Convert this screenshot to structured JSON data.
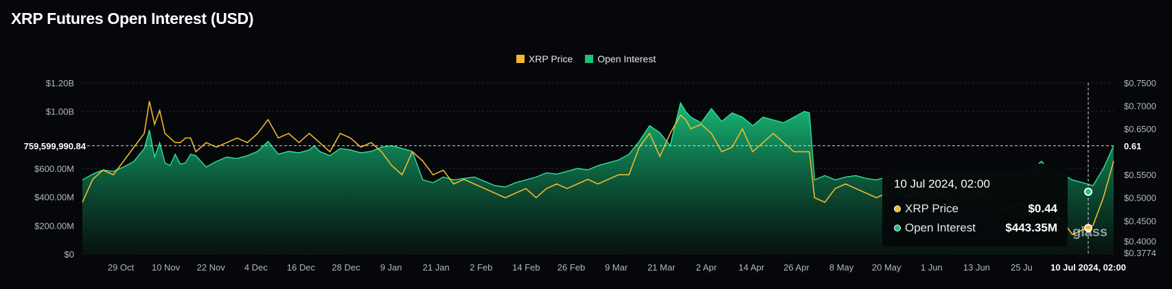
{
  "title": "XRP Futures Open Interest (USD)",
  "watermark": "glass",
  "legend": [
    {
      "name": "XRP Price",
      "color": "#f3ba2f"
    },
    {
      "name": "Open Interest",
      "color": "#19c37d"
    }
  ],
  "crosshair": {
    "y_label": "759,599,990.84",
    "y_value": 759599990.84,
    "right_label": "0.61",
    "x_label": "10 Jul 2024, 02:00"
  },
  "tooltip": {
    "date": "10 Jul 2024, 02:00",
    "rows": [
      {
        "name": "XRP Price",
        "value": "$0.44",
        "color": "#f3ba2f"
      },
      {
        "name": "Open Interest",
        "value": "$443.35M",
        "color": "#19c37d"
      }
    ]
  },
  "chart_data": {
    "type": "area",
    "title": "XRP Futures Open Interest (USD)",
    "x_ticks": [
      "29 Oct",
      "10 Nov",
      "22 Nov",
      "4 Dec",
      "16 Dec",
      "28 Dec",
      "9 Jan",
      "21 Jan",
      "2 Feb",
      "14 Feb",
      "26 Feb",
      "9 Mar",
      "21 Mar",
      "2 Apr",
      "14 Apr",
      "26 Apr",
      "8 May",
      "20 May",
      "1 Jun",
      "13 Jun",
      "25 Ju"
    ],
    "y_left": {
      "ticks": [
        0,
        200000000,
        400000000,
        600000000,
        1000000000,
        1200000000
      ],
      "labels": [
        "$0",
        "$200.00M",
        "$400.00M",
        "$600.00M",
        "$1.00B",
        "$1.20B"
      ],
      "range": [
        0,
        1200000000
      ]
    },
    "y_right": {
      "ticks": [
        0.3774,
        0.4,
        0.45,
        0.5,
        0.55,
        0.6,
        0.65,
        0.7,
        0.75
      ],
      "labels": [
        "$0.3774",
        "$0.4000",
        "$0.4500",
        "$0.5000",
        "$0.5500",
        "",
        "$0.6500",
        "$0.7000",
        "$0.7500"
      ],
      "range": [
        0.3774,
        0.75
      ]
    },
    "x_range": [
      0,
      1
    ],
    "grid": true,
    "legend_position": "top-center",
    "series": [
      {
        "name": "Open Interest",
        "axis": "left",
        "color": "#19c37d",
        "x": [
          0.0,
          0.01,
          0.02,
          0.03,
          0.04,
          0.05,
          0.06,
          0.065,
          0.07,
          0.075,
          0.08,
          0.085,
          0.09,
          0.095,
          0.1,
          0.105,
          0.11,
          0.12,
          0.13,
          0.14,
          0.15,
          0.16,
          0.17,
          0.18,
          0.19,
          0.2,
          0.21,
          0.22,
          0.225,
          0.23,
          0.24,
          0.25,
          0.26,
          0.27,
          0.28,
          0.29,
          0.3,
          0.31,
          0.32,
          0.33,
          0.34,
          0.35,
          0.36,
          0.37,
          0.38,
          0.39,
          0.4,
          0.41,
          0.42,
          0.43,
          0.44,
          0.45,
          0.46,
          0.47,
          0.48,
          0.49,
          0.5,
          0.51,
          0.52,
          0.53,
          0.54,
          0.55,
          0.56,
          0.57,
          0.58,
          0.585,
          0.59,
          0.6,
          0.61,
          0.62,
          0.63,
          0.64,
          0.65,
          0.66,
          0.67,
          0.68,
          0.69,
          0.7,
          0.705,
          0.71,
          0.72,
          0.73,
          0.74,
          0.75,
          0.76,
          0.77,
          0.78,
          0.79,
          0.8,
          0.81,
          0.82,
          0.83,
          0.84,
          0.85,
          0.86,
          0.87,
          0.88,
          0.89,
          0.9,
          0.91,
          0.92,
          0.93,
          0.94,
          0.95,
          0.96,
          0.97,
          0.98,
          0.99,
          1.0
        ],
        "y": [
          520000000,
          560000000,
          590000000,
          580000000,
          610000000,
          650000000,
          740000000,
          870000000,
          680000000,
          780000000,
          640000000,
          620000000,
          700000000,
          630000000,
          640000000,
          700000000,
          690000000,
          610000000,
          650000000,
          680000000,
          670000000,
          690000000,
          720000000,
          790000000,
          700000000,
          720000000,
          710000000,
          730000000,
          760000000,
          720000000,
          690000000,
          740000000,
          730000000,
          710000000,
          720000000,
          750000000,
          760000000,
          740000000,
          720000000,
          520000000,
          500000000,
          540000000,
          520000000,
          530000000,
          540000000,
          510000000,
          480000000,
          470000000,
          500000000,
          520000000,
          540000000,
          570000000,
          560000000,
          580000000,
          600000000,
          590000000,
          620000000,
          640000000,
          660000000,
          700000000,
          790000000,
          900000000,
          850000000,
          760000000,
          1060000000,
          1000000000,
          960000000,
          920000000,
          1020000000,
          930000000,
          990000000,
          960000000,
          900000000,
          960000000,
          940000000,
          920000000,
          960000000,
          1000000000,
          990000000,
          520000000,
          550000000,
          520000000,
          540000000,
          550000000,
          530000000,
          520000000,
          540000000,
          560000000,
          550000000,
          560000000,
          550000000,
          570000000,
          560000000,
          560000000,
          570000000,
          580000000,
          570000000,
          560000000,
          580000000,
          570000000,
          590000000,
          650000000,
          580000000,
          560000000,
          520000000,
          500000000,
          480000000,
          600000000,
          760000000
        ]
      },
      {
        "name": "XRP Price",
        "axis": "right",
        "color": "#f3ba2f",
        "x": [
          0.0,
          0.01,
          0.02,
          0.03,
          0.04,
          0.05,
          0.06,
          0.065,
          0.07,
          0.075,
          0.08,
          0.085,
          0.09,
          0.095,
          0.1,
          0.105,
          0.11,
          0.12,
          0.13,
          0.14,
          0.15,
          0.16,
          0.17,
          0.18,
          0.19,
          0.2,
          0.21,
          0.22,
          0.225,
          0.23,
          0.24,
          0.25,
          0.26,
          0.27,
          0.28,
          0.29,
          0.3,
          0.31,
          0.32,
          0.33,
          0.34,
          0.35,
          0.36,
          0.37,
          0.38,
          0.39,
          0.4,
          0.41,
          0.42,
          0.43,
          0.44,
          0.45,
          0.46,
          0.47,
          0.48,
          0.49,
          0.5,
          0.51,
          0.52,
          0.53,
          0.54,
          0.55,
          0.56,
          0.57,
          0.58,
          0.585,
          0.59,
          0.6,
          0.61,
          0.62,
          0.63,
          0.64,
          0.65,
          0.66,
          0.67,
          0.68,
          0.69,
          0.7,
          0.705,
          0.71,
          0.72,
          0.73,
          0.74,
          0.75,
          0.76,
          0.77,
          0.78,
          0.79,
          0.8,
          0.81,
          0.82,
          0.83,
          0.84,
          0.85,
          0.86,
          0.87,
          0.88,
          0.89,
          0.9,
          0.91,
          0.92,
          0.93,
          0.94,
          0.95,
          0.96,
          0.97,
          0.98,
          0.99,
          1.0
        ],
        "y": [
          0.49,
          0.54,
          0.56,
          0.55,
          0.58,
          0.61,
          0.64,
          0.71,
          0.66,
          0.69,
          0.64,
          0.63,
          0.62,
          0.62,
          0.63,
          0.63,
          0.6,
          0.62,
          0.61,
          0.62,
          0.63,
          0.62,
          0.64,
          0.67,
          0.63,
          0.64,
          0.62,
          0.64,
          0.63,
          0.62,
          0.6,
          0.64,
          0.63,
          0.61,
          0.62,
          0.6,
          0.57,
          0.55,
          0.6,
          0.58,
          0.55,
          0.56,
          0.53,
          0.54,
          0.53,
          0.52,
          0.51,
          0.5,
          0.51,
          0.52,
          0.5,
          0.52,
          0.53,
          0.52,
          0.53,
          0.54,
          0.53,
          0.54,
          0.55,
          0.55,
          0.61,
          0.64,
          0.59,
          0.64,
          0.68,
          0.67,
          0.65,
          0.66,
          0.64,
          0.6,
          0.61,
          0.65,
          0.6,
          0.62,
          0.64,
          0.62,
          0.6,
          0.6,
          0.6,
          0.5,
          0.49,
          0.52,
          0.53,
          0.52,
          0.51,
          0.5,
          0.51,
          0.52,
          0.5,
          0.51,
          0.5,
          0.51,
          0.5,
          0.49,
          0.5,
          0.51,
          0.49,
          0.47,
          0.48,
          0.49,
          0.47,
          0.48,
          0.47,
          0.45,
          0.42,
          0.43,
          0.44,
          0.5,
          0.58
        ]
      }
    ]
  }
}
